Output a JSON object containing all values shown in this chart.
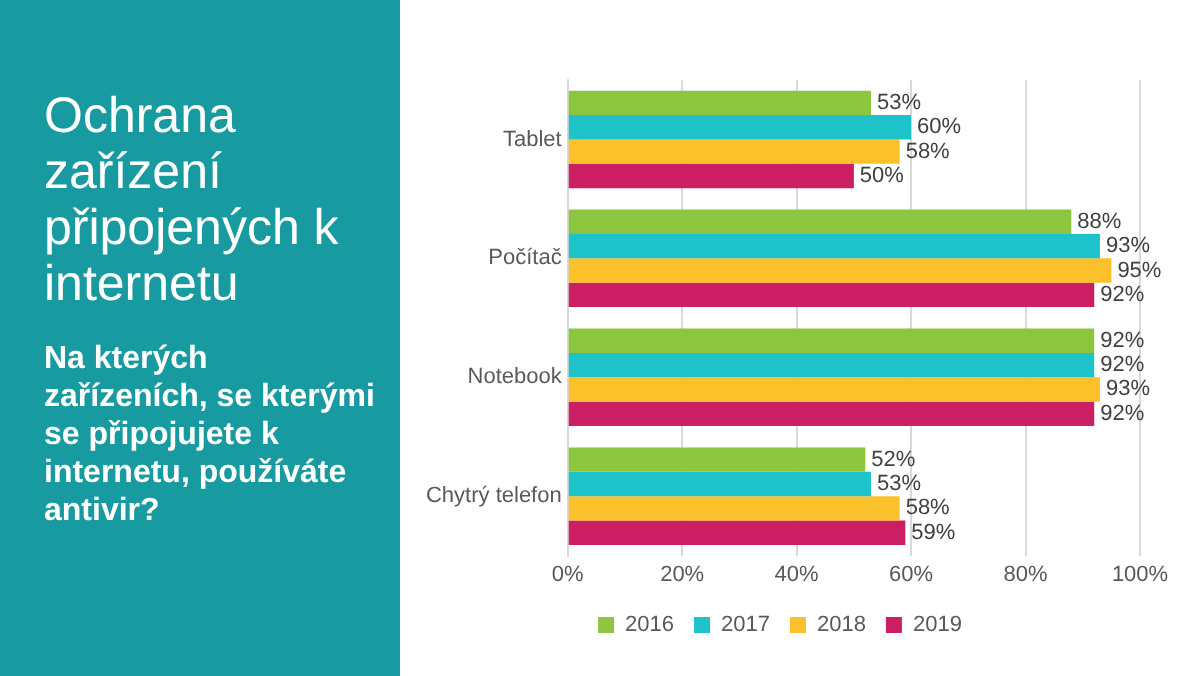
{
  "chart_data": {
    "type": "bar",
    "orientation": "horizontal",
    "title": "Ochrana zařízení připojených k internetu",
    "subtitle": "Na kterých zařízeních, se kterými se připojujete k internetu, používáte antivir?",
    "categories": [
      "Tablet",
      "Počítač",
      "Notebook",
      "Chytrý telefon"
    ],
    "series": [
      {
        "name": "2016",
        "color": "#8cc63e",
        "values": [
          53,
          88,
          92,
          52
        ],
        "value_labels": [
          "53%",
          "88%",
          "92%",
          "52%"
        ]
      },
      {
        "name": "2017",
        "color": "#1dc3c9",
        "values": [
          60,
          93,
          92,
          53
        ],
        "value_labels": [
          "60%",
          "93%",
          "92%",
          "53%"
        ]
      },
      {
        "name": "2018",
        "color": "#fcc02a",
        "values": [
          58,
          95,
          93,
          58
        ],
        "value_labels": [
          "58%",
          "95%",
          "93%",
          "58%"
        ]
      },
      {
        "name": "2019",
        "color": "#cc1f63",
        "values": [
          50,
          92,
          92,
          59
        ],
        "value_labels": [
          "50%",
          "92%",
          "92%",
          "59%"
        ]
      }
    ],
    "xlim": [
      0,
      100
    ],
    "xticks": [
      {
        "value": 0,
        "label": "0%"
      },
      {
        "value": 20,
        "label": "20%"
      },
      {
        "value": 40,
        "label": "40%"
      },
      {
        "value": 60,
        "label": "60%"
      },
      {
        "value": 80,
        "label": "80%"
      },
      {
        "value": 100,
        "label": "100%"
      }
    ],
    "grid": "x",
    "legend": "bottom"
  }
}
